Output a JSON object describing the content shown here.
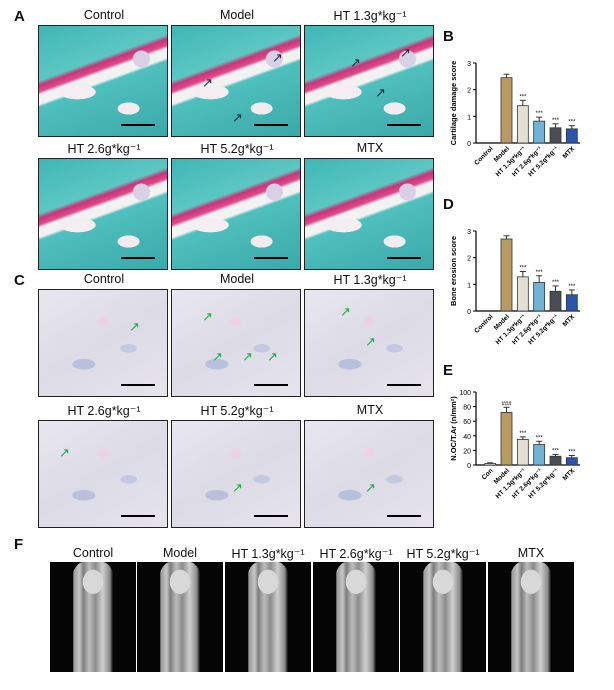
{
  "panels": {
    "A": {
      "label": "A",
      "titles": [
        "Control",
        "Model",
        "HT 1.3g*kg⁻¹",
        "HT 2.6g*kg⁻¹",
        "HT 5.2g*kg⁻¹",
        "MTX"
      ]
    },
    "C": {
      "label": "C",
      "titles": [
        "Control",
        "Model",
        "HT 1.3g*kg⁻¹",
        "HT 2.6g*kg⁻¹",
        "HT 5.2g*kg⁻¹",
        "MTX"
      ]
    },
    "F": {
      "label": "F",
      "titles": [
        "Control",
        "Model",
        "HT 1.3g*kg⁻¹",
        "HT 2.6g*kg⁻¹",
        "HT 5.2g*kg⁻¹",
        "MTX"
      ]
    }
  },
  "colors": {
    "Control": "#ffffff",
    "Model": "#b89a63",
    "HT1.3": "#e3dfd2",
    "HT2.6": "#6fb4d4",
    "HT5.2": "#4a4d52",
    "MTX": "#2a55a8",
    "arrow_A": "#1a2a3a",
    "arrow_C": "#22aa44"
  },
  "chart_data": [
    {
      "panel": "B",
      "type": "bar",
      "ylabel": "Cartilage damage score",
      "ylim": [
        0,
        3
      ],
      "yticks": [
        "0",
        "1",
        "2",
        "3"
      ],
      "categories": [
        "Control",
        "Model",
        "HT 1.3g*kg⁻¹",
        "HT 2.6g*kg⁻¹",
        "HT 5.2g*kg⁻¹",
        "MTX"
      ],
      "values": [
        0,
        2.45,
        1.4,
        0.82,
        0.57,
        0.53
      ],
      "errors": [
        0,
        0.13,
        0.2,
        0.15,
        0.15,
        0.12
      ],
      "annotations": [
        "",
        "",
        "***",
        "***",
        "***",
        "***"
      ]
    },
    {
      "panel": "D",
      "type": "bar",
      "ylabel": "Bone erosion score",
      "ylim": [
        0,
        3
      ],
      "yticks": [
        "0",
        "1",
        "2",
        "3"
      ],
      "categories": [
        "Control",
        "Model",
        "HT 1.3g*kg⁻¹",
        "HT 2.6g*kg⁻¹",
        "HT 5.2g*kg⁻¹",
        "MTX"
      ],
      "values": [
        0,
        2.7,
        1.28,
        1.07,
        0.74,
        0.61
      ],
      "errors": [
        0,
        0.12,
        0.2,
        0.25,
        0.2,
        0.18
      ],
      "annotations": [
        "",
        "",
        "***",
        "***",
        "***",
        "***"
      ]
    },
    {
      "panel": "E",
      "type": "bar",
      "ylabel": "N.OC/T.Ar (n/mm²)",
      "ylim": [
        0,
        100
      ],
      "yticks": [
        "0",
        "20",
        "40",
        "60",
        "80",
        "100"
      ],
      "categories": [
        "Con",
        "Model",
        "HT 1.3g*kg⁻¹",
        "HT 2.6g*kg⁻¹",
        "HT 5.2g*kg⁻¹",
        "MTX"
      ],
      "values": [
        2,
        72,
        35,
        28,
        12,
        10
      ],
      "errors": [
        1,
        7,
        3.5,
        4.5,
        2.5,
        3
      ],
      "annotations": [
        "",
        "###",
        "***",
        "***",
        "***",
        "***"
      ]
    }
  ]
}
